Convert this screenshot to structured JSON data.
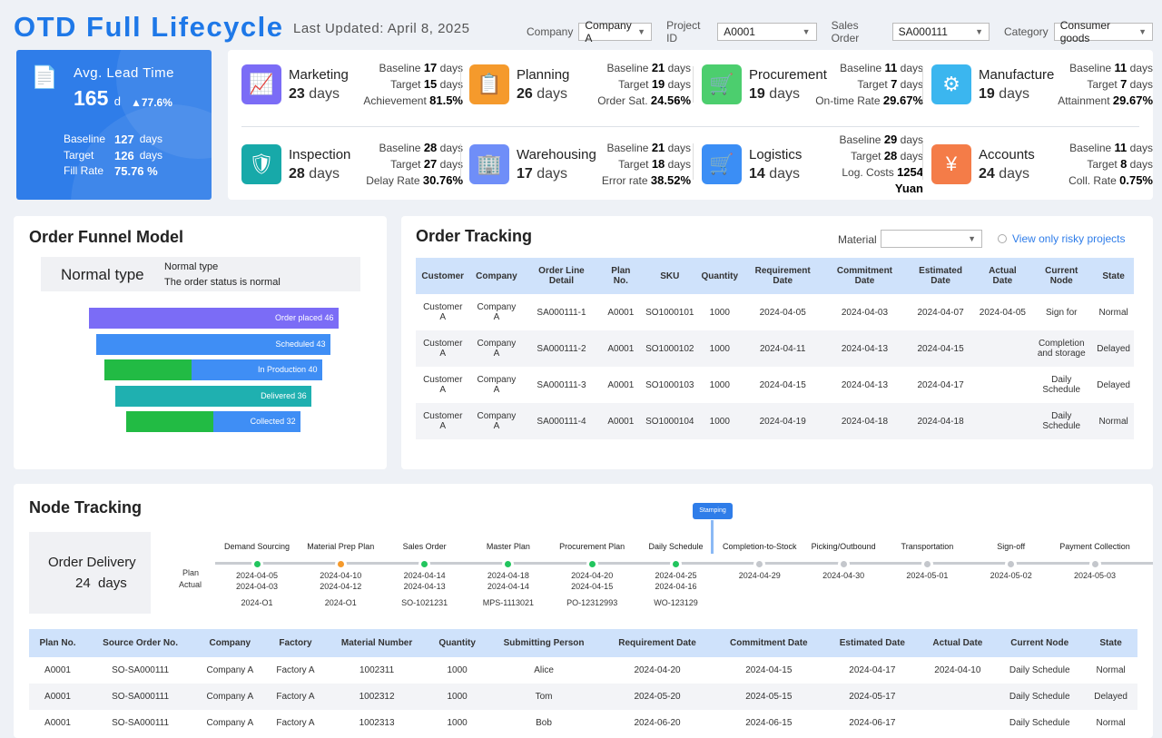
{
  "header": {
    "title": "OTD Full Lifecycle",
    "updated": "Last Updated: April 8, 2025",
    "filters": [
      {
        "label": "Company",
        "value": "Company A",
        "w": 84
      },
      {
        "label": "Project ID",
        "value": "A0001",
        "w": 114
      },
      {
        "label": "Sales Order",
        "value": "SA000111",
        "w": 112
      },
      {
        "label": "Category",
        "value": "Consumer goods",
        "w": 114
      }
    ]
  },
  "lead": {
    "title": "Avg. Lead Time",
    "value": "165",
    "unit": "d",
    "change": "▲77.6%",
    "rows": [
      {
        "k": "Baseline",
        "v": "127",
        "u": "days"
      },
      {
        "k": "Target",
        "v": "126",
        "u": "days"
      },
      {
        "k": "Fill Rate",
        "v": "75.76 %",
        "u": ""
      }
    ]
  },
  "kpis": [
    {
      "name": "Marketing",
      "days": "23",
      "color": "#7b6cf6",
      "icon": "chart-icon",
      "glyph": "📈",
      "baseline": "17",
      "target": "15",
      "mk": "Achievement",
      "mv": "81.5%"
    },
    {
      "name": "Planning",
      "days": "26",
      "color": "#f59a2c",
      "icon": "clipboard-icon",
      "glyph": "📋",
      "baseline": "21",
      "target": "19",
      "mk": "Order Sat.",
      "mv": "24.56%"
    },
    {
      "name": "Procurement",
      "days": "19",
      "color": "#4cce6e",
      "icon": "cart-icon",
      "glyph": "🛒",
      "baseline": "11",
      "target": "7",
      "mk": "On-time Rate",
      "mv": "29.67%"
    },
    {
      "name": "Manufacture",
      "days": "19",
      "color": "#3bb6ef",
      "icon": "gears-icon",
      "glyph": "⚙",
      "baseline": "11",
      "target": "7",
      "mk": "Attainment",
      "mv": "29.67%"
    },
    {
      "name": "Inspection",
      "days": "28",
      "color": "#17a9a9",
      "icon": "shield-search-icon",
      "glyph": "🛡",
      "baseline": "28",
      "target": "27",
      "mk": "Delay Rate",
      "mv": "30.76%"
    },
    {
      "name": "Warehousing",
      "days": "17",
      "color": "#6f8ef8",
      "icon": "warehouse-icon",
      "glyph": "🏢",
      "baseline": "21",
      "target": "18",
      "mk": "Error rate",
      "mv": "38.52%"
    },
    {
      "name": "Logistics",
      "days": "14",
      "color": "#3b8ef5",
      "icon": "hand-truck-icon",
      "glyph": "🛒",
      "baseline": "29",
      "target": "28",
      "mk": "Log. Costs",
      "mv": "1254 Yuan"
    },
    {
      "name": "Accounts",
      "days": "24",
      "color": "#f47c48",
      "icon": "yen-icon",
      "glyph": "¥",
      "baseline": "11",
      "target": "8",
      "mk": "Coll. Rate",
      "mv": "0.75%"
    }
  ],
  "kpi_labels": {
    "baseline": "Baseline",
    "target": "Target",
    "days": "days"
  },
  "funnel": {
    "title": "Order Funnel Model",
    "type": "Normal type",
    "legend_title": "Normal type",
    "legend_desc": "The order status is normal",
    "stages": [
      {
        "label": "Order placed 46",
        "value": 46,
        "color": "#7b6cf6"
      },
      {
        "label": "Scheduled 43",
        "value": 43,
        "color": "#3f8ef5"
      },
      {
        "label": "In Production 40",
        "value": 40,
        "color": "#3f8ef5",
        "green": 0.4
      },
      {
        "label": "Delivered 36",
        "value": 36,
        "color": "#1fb0b0"
      },
      {
        "label": "Collected 32",
        "value": 32,
        "color": "#3f8ef5",
        "green": 0.5
      }
    ]
  },
  "tracking": {
    "title": "Order Tracking",
    "material_label": "Material",
    "risky": "View only risky projects",
    "columns": [
      "Customer",
      "Company",
      "Order Line Detail",
      "Plan No.",
      "SKU",
      "Quantity",
      "Requirement Date",
      "Commitment Date",
      "Estimated Date",
      "Actual Date",
      "Current Node",
      "State"
    ],
    "rows": [
      [
        "Customer A",
        "Company A",
        "SA000111-1",
        "A0001",
        "SO1000101",
        "1000",
        "2024-04-05",
        "2024-04-03",
        "2024-04-07",
        "2024-04-05",
        "Sign for",
        "Normal"
      ],
      [
        "Customer A",
        "Company A",
        "SA000111-2",
        "A0001",
        "SO1000102",
        "1000",
        "2024-04-11",
        "2024-04-13",
        "2024-04-15",
        "",
        "Completion and storage",
        "Delayed"
      ],
      [
        "Customer A",
        "Company A",
        "SA000111-3",
        "A0001",
        "SO1000103",
        "1000",
        "2024-04-15",
        "2024-04-13",
        "2024-04-17",
        "",
        "Daily Schedule",
        "Delayed"
      ],
      [
        "Customer A",
        "Company A",
        "SA000111-4",
        "A0001",
        "SO1000104",
        "1000",
        "2024-04-19",
        "2024-04-18",
        "2024-04-18",
        "",
        "Daily Schedule",
        "Normal"
      ]
    ]
  },
  "node": {
    "title": "Node Tracking",
    "delivery_label": "Order Delivery",
    "delivery_days": "24  days",
    "plan_label": "Plan",
    "actual_label": "Actual",
    "marker": "Stamping",
    "nodes": [
      {
        "name": "Demand Sourcing",
        "status": "#22c55e",
        "plan": "2024-04-05",
        "actual": "2024-04-03",
        "ref": "2024-O1"
      },
      {
        "name": "Material Prep Plan",
        "status": "#f59a2c",
        "plan": "2024-04-10",
        "actual": "2024-04-12",
        "ref": "2024-O1"
      },
      {
        "name": "Sales Order",
        "status": "#22c55e",
        "plan": "2024-04-14",
        "actual": "2024-04-13",
        "ref": "SO-1021231"
      },
      {
        "name": "Master Plan",
        "status": "#22c55e",
        "plan": "2024-04-18",
        "actual": "2024-04-14",
        "ref": "MPS-1113021"
      },
      {
        "name": "Procurement Plan",
        "status": "#22c55e",
        "plan": "2024-04-20",
        "actual": "2024-04-15",
        "ref": "PO-12312993"
      },
      {
        "name": "Daily Schedule",
        "status": "#22c55e",
        "plan": "2024-04-25",
        "actual": "2024-04-16",
        "ref": "WO-123129"
      },
      {
        "name": "Completion-to-Stock",
        "status": "#c4c7cc",
        "plan": "2024-04-29",
        "actual": "",
        "ref": ""
      },
      {
        "name": "Picking/Outbound",
        "status": "#c4c7cc",
        "plan": "2024-04-30",
        "actual": "",
        "ref": ""
      },
      {
        "name": "Transportation",
        "status": "#c4c7cc",
        "plan": "2024-05-01",
        "actual": "",
        "ref": ""
      },
      {
        "name": "Sign-off",
        "status": "#c4c7cc",
        "plan": "2024-05-02",
        "actual": "",
        "ref": ""
      },
      {
        "name": "Payment Collection",
        "status": "#c4c7cc",
        "plan": "2024-05-03",
        "actual": "",
        "ref": ""
      }
    ],
    "columns": [
      "Plan No.",
      "Source Order No.",
      "Company",
      "Factory",
      "Material Number",
      "Quantity",
      "Submitting Person",
      "Requirement Date",
      "Commitment Date",
      "Estimated Date",
      "Actual Date",
      "Current Node",
      "State"
    ],
    "rows": [
      [
        "A0001",
        "SO-SA000111",
        "Company A",
        "Factory A",
        "1002311",
        "1000",
        "Alice",
        "2024-04-20",
        "2024-04-15",
        "2024-04-17",
        "2024-04-10",
        "Daily Schedule",
        "Normal"
      ],
      [
        "A0001",
        "SO-SA000111",
        "Company A",
        "Factory A",
        "1002312",
        "1000",
        "Tom",
        "2024-05-20",
        "2024-05-15",
        "2024-05-17",
        "",
        "Daily Schedule",
        "Delayed"
      ],
      [
        "A0001",
        "SO-SA000111",
        "Company A",
        "Factory A",
        "1002313",
        "1000",
        "Bob",
        "2024-06-20",
        "2024-06-15",
        "2024-06-17",
        "",
        "Daily Schedule",
        "Normal"
      ]
    ]
  }
}
